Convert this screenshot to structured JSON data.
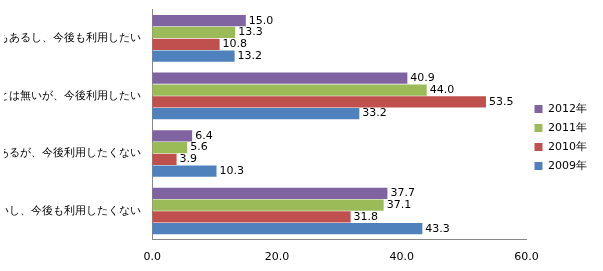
{
  "chart_data": {
    "type": "bar",
    "orientation": "horizontal",
    "categories": [
      "利用したこともあるし、今後も利用したい",
      "利用したことは無いが、今後利用したい",
      "利用したことはあるが、今後利用したくない",
      "利用したことは無いし、今後も利用したくない"
    ],
    "series": [
      {
        "name": "2012年",
        "color": "#8064a2",
        "values": [
          15.0,
          40.9,
          6.4,
          37.7
        ],
        "value_labels": [
          "15.0",
          "40.9",
          "6.4",
          "37.7"
        ]
      },
      {
        "name": "2011年",
        "color": "#9bbb59",
        "values": [
          13.3,
          44.0,
          5.6,
          37.1
        ],
        "value_labels": [
          "13.3",
          "44.0",
          "5.6",
          "37.1"
        ]
      },
      {
        "name": "2010年",
        "color": "#c0504d",
        "values": [
          10.8,
          53.5,
          3.9,
          31.8
        ],
        "value_labels": [
          "10.8",
          "53.5",
          "3.9",
          "31.8"
        ]
      },
      {
        "name": "2009年",
        "color": "#4f81bd",
        "values": [
          13.2,
          33.2,
          10.3,
          43.3
        ],
        "value_labels": [
          "13.2",
          "33.2",
          "10.3",
          "43.3"
        ]
      }
    ],
    "xlim": [
      0,
      60
    ],
    "xticks": [
      {
        "value": 0,
        "label": "0.0"
      },
      {
        "value": 20,
        "label": "20.0"
      },
      {
        "value": 40,
        "label": "40.0"
      },
      {
        "value": 60,
        "label": "60.0"
      }
    ],
    "grid": false,
    "legend": "right",
    "data_labels": true
  }
}
